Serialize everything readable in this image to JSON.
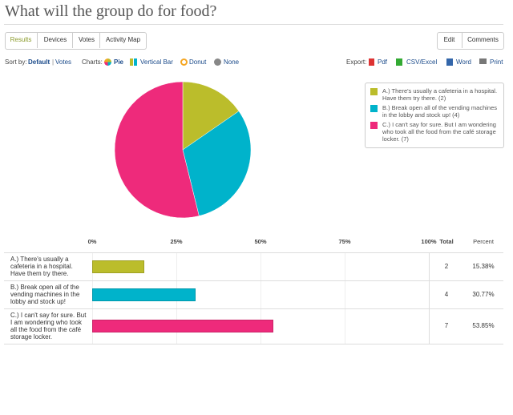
{
  "header": {
    "title": "What will the group do for food?"
  },
  "tabs": [
    "Results",
    "Devices",
    "Votes",
    "Activity Map"
  ],
  "actions": [
    "Edit",
    "Comments"
  ],
  "sort": {
    "label": "Sort by:",
    "options": [
      "Default",
      "Votes"
    ],
    "separator": "|"
  },
  "charts_menu": {
    "label": "Charts:",
    "options": [
      "Pie",
      "Vertical Bar",
      "Donut",
      "None"
    ]
  },
  "export": {
    "label": "Export:",
    "options": [
      "Pdf",
      "CSV/Excel",
      "Word",
      "Print"
    ]
  },
  "chart_data": [
    {
      "type": "pie",
      "categories": [
        "A.) There's usually a cafeteria in a hospital. Have them try there. (2)",
        "B.) Break open all of the vending machines in the lobby and stock up! (4)",
        "C.) I can't say for sure. But I am wondering who took all the food from the café storage locker. (7)"
      ],
      "values": [
        2,
        4,
        7
      ],
      "colors": [
        "#bbbd2b",
        "#00b3cb",
        "#ee2a7b"
      ]
    },
    {
      "type": "bar",
      "orientation": "horizontal",
      "categories": [
        "A.) There's usually a cafeteria in a hospital. Have them try there.",
        "B.) Break open all of the vending machines in the lobby and stock up!",
        "C.) I can't say for sure. But I am wondering who took all the food from the café storage locker."
      ],
      "values": [
        15.38,
        30.77,
        53.85
      ],
      "value_labels": [
        "15.38%",
        "30.77%",
        "53.85%"
      ],
      "totals": [
        2,
        4,
        7
      ],
      "total_label": "Total",
      "percent_label": "Percent",
      "colors": [
        "#bbbd2b",
        "#00b3cb",
        "#ee2a7b"
      ],
      "xlim": [
        0,
        100
      ],
      "xticks": [
        {
          "value": 0,
          "label": "0%"
        },
        {
          "value": 25,
          "label": "25%"
        },
        {
          "value": 50,
          "label": "50%"
        },
        {
          "value": 75,
          "label": "75%"
        },
        {
          "value": 100,
          "label": "100%"
        }
      ]
    }
  ]
}
